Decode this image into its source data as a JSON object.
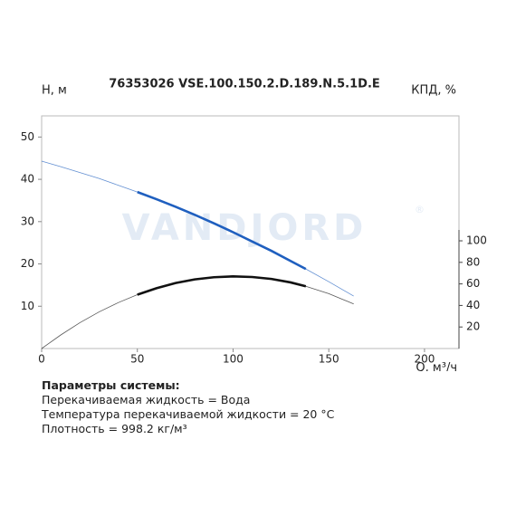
{
  "chart_data": {
    "type": "line",
    "title": "76353026 VSE.100.150.2.D.189.N.5.1D.E",
    "y_label": "H, м",
    "y2_label": "КПД, %",
    "x_label": "Q, м³/ч",
    "watermark": "VANDJORD",
    "watermark_mark": "®",
    "x": [
      0,
      10,
      20,
      30,
      40,
      50,
      60,
      70,
      80,
      90,
      100,
      110,
      120,
      130,
      138,
      150,
      163
    ],
    "series": [
      {
        "color": "#1f5fbf",
        "values": [
          44.3,
          43.0,
          41.6,
          40.2,
          38.6,
          37.0,
          35.3,
          33.5,
          31.6,
          29.6,
          27.5,
          25.3,
          23.1,
          20.7,
          18.8,
          15.8,
          12.4
        ]
      },
      {
        "color": "#111111",
        "axis": "y2",
        "values": [
          0,
          12.6,
          24.0,
          34.0,
          42.6,
          50.0,
          56.0,
          60.8,
          64.2,
          66.2,
          67.0,
          66.4,
          64.6,
          61.4,
          57.8,
          51.0,
          41.4
        ]
      }
    ],
    "operating_range": [
      50,
      138
    ],
    "xlim": [
      0,
      218
    ],
    "xticks": [
      0,
      50,
      100,
      150,
      200
    ],
    "ylim": [
      0,
      55
    ],
    "yticks": [
      10,
      20,
      30,
      40,
      50
    ],
    "y2lim": [
      0,
      216
    ],
    "y2ticks": [
      20,
      40,
      60,
      80,
      100
    ],
    "grid": false
  },
  "parameters": {
    "heading": "Параметры системы:",
    "lines": [
      "Перекачиваемая жидкость = Вода",
      "Температура перекачиваемой жидкости = 20 °C",
      "Плотность = 998.2 кг/м³"
    ]
  }
}
